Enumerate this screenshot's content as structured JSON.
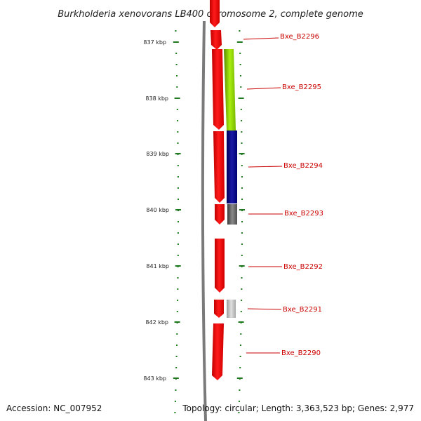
{
  "title": "Burkholderia xenovorans LB400 chromosome 2, complete genome",
  "footer": {
    "accession": "Accession: NC_007952",
    "summary": "Topology: circular; Length: 3,363,523 bp; Genes: 2,977"
  },
  "scale": {
    "labels": [
      "837 kbp",
      "838 kbp",
      "839 kbp",
      "840 kbp",
      "841 kbp",
      "842 kbp",
      "843 kbp"
    ]
  },
  "colors": {
    "backbone": "#7a7a7a",
    "forward_strand": "#ff0000",
    "tick": "#1f7a1f",
    "label": "#cc0000",
    "cog_green": "#8fd400",
    "cog_blue": "#0a0a8c",
    "cog_gray_dark": "#606060",
    "cog_gray_light": "#b8b8b8"
  },
  "genes": [
    {
      "label": "Bxe_B2296",
      "color": "#ff0000"
    },
    {
      "label": "Bxe_B2295",
      "color": "#ff0000"
    },
    {
      "label": "Bxe_B2294",
      "color": "#ff0000"
    },
    {
      "label": "Bxe_B2293",
      "color": "#ff0000"
    },
    {
      "label": "Bxe_B2292",
      "color": "#ff0000"
    },
    {
      "label": "Bxe_B2291",
      "color": "#ff0000"
    },
    {
      "label": "Bxe_B2290",
      "color": "#ff0000"
    }
  ]
}
